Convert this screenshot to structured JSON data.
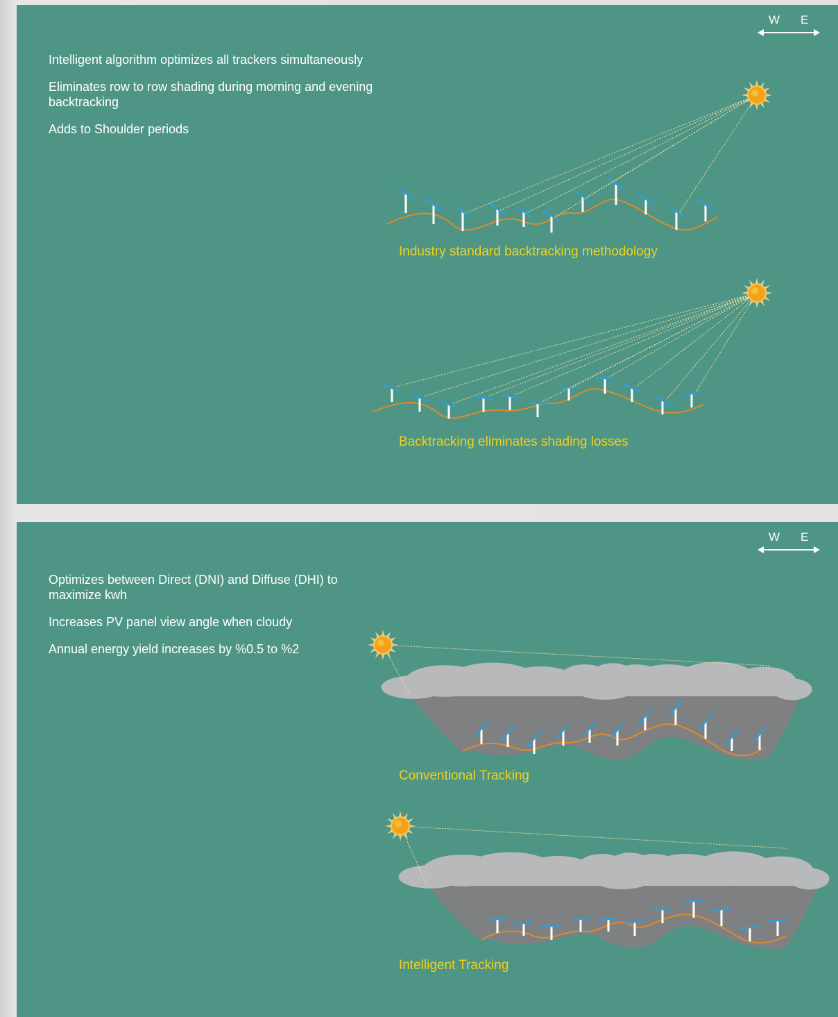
{
  "top_panel": {
    "compass": {
      "west": "W",
      "east": "E"
    },
    "bullets": [
      "Intelligent algorithm optimizes all trackers simultaneously",
      "Eliminates row to row shading during morning and evening backtracking",
      "Adds to Shoulder periods"
    ],
    "caption_1": "Industry standard backtracking methodology",
    "caption_2": "Backtracking eliminates shading losses"
  },
  "bottom_panel": {
    "compass": {
      "west": "W",
      "east": "E"
    },
    "bullets": [
      "Optimizes between Direct (DNI) and Diffuse (DHI) to maximize kwh",
      "Increases PV panel view angle when cloudy",
      "Annual energy yield increases by %0.5 to %2"
    ],
    "caption_1": "Conventional Tracking",
    "caption_2": "Intelligent Tracking"
  },
  "colors": {
    "panel_bg": "#4e9586",
    "caption": "#f2d21c",
    "terrain": "#e08a2c",
    "panel_blue": "#2f9fd8",
    "cloud": "#b8b9ba",
    "cloud_shadow": "#7f8082",
    "sun": "#f4a21b"
  },
  "icons": [
    "sun-icon",
    "solar-tracker-icon",
    "cloud-icon",
    "west-east-arrow-icon"
  ]
}
